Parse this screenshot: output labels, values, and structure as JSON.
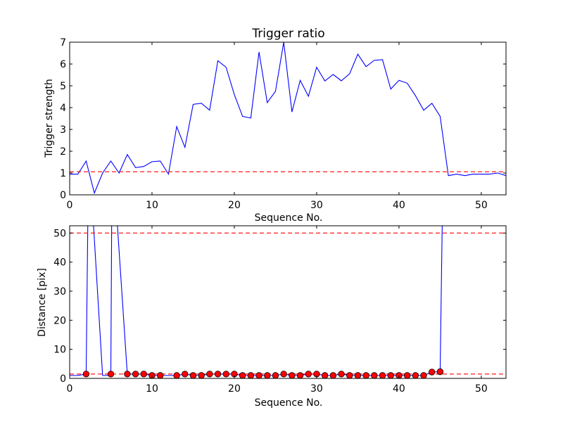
{
  "colors": {
    "line": "#0000ff",
    "threshold": "#ff0000",
    "marker_fill": "#ff0000",
    "marker_edge": "#000000",
    "axes": "#000000"
  },
  "chart_data": [
    {
      "type": "line",
      "title": "Trigger ratio",
      "xlabel": "Sequence No.",
      "ylabel": "Trigger strength",
      "xlim": [
        0,
        53
      ],
      "ylim": [
        0,
        7
      ],
      "xticks": [
        0,
        10,
        20,
        30,
        40,
        50
      ],
      "yticks": [
        0,
        1,
        2,
        3,
        4,
        5,
        6,
        7
      ],
      "grid": false,
      "series": [
        {
          "x": [
            0,
            1,
            2,
            3,
            4,
            5,
            6,
            7,
            8,
            9,
            10,
            11,
            12,
            13,
            14,
            15,
            16,
            17,
            18,
            19,
            20,
            21,
            22,
            23,
            24,
            25,
            26,
            27,
            28,
            29,
            30,
            31,
            32,
            33,
            34,
            35,
            36,
            37,
            38,
            39,
            40,
            41,
            42,
            43,
            44,
            45,
            46,
            47,
            48,
            49,
            50,
            51,
            52,
            53
          ],
          "values": [
            0.95,
            0.95,
            1.55,
            0.08,
            1.0,
            1.55,
            1.0,
            1.85,
            1.25,
            1.3,
            1.52,
            1.55,
            0.95,
            3.13,
            2.18,
            4.15,
            4.2,
            3.88,
            6.15,
            5.85,
            4.6,
            3.6,
            3.52,
            6.55,
            4.23,
            4.75,
            7.0,
            3.8,
            5.25,
            4.52,
            5.85,
            5.22,
            5.52,
            5.23,
            5.55,
            6.45,
            5.88,
            6.17,
            6.2,
            4.85,
            5.25,
            5.12,
            4.55,
            3.88,
            4.2,
            3.6,
            0.88,
            0.95,
            0.88,
            0.95,
            0.95,
            0.95,
            1.0,
            0.88
          ]
        }
      ],
      "hlines": [
        1.06
      ]
    },
    {
      "type": "line",
      "title": "",
      "xlabel": "Sequence No.",
      "ylabel": "Distance [pix]",
      "xlim": [
        0,
        53
      ],
      "ylim": [
        0,
        52.5
      ],
      "xticks": [
        0,
        10,
        20,
        30,
        40,
        50
      ],
      "yticks": [
        0,
        10,
        20,
        30,
        40,
        50
      ],
      "grid": false,
      "series": [
        {
          "x": [
            0,
            1,
            2,
            2.2,
            2.9,
            4,
            4.8,
            5,
            5.1,
            5.8,
            7,
            8,
            9,
            10,
            11,
            12,
            13,
            14,
            15,
            16,
            17,
            18,
            19,
            20,
            21,
            22,
            23,
            24,
            25,
            26,
            27,
            28,
            29,
            30,
            31,
            32,
            33,
            34,
            35,
            36,
            37,
            38,
            39,
            40,
            41,
            42,
            43,
            44,
            45,
            45.25
          ],
          "values": [
            1.0,
            1.0,
            1.5,
            52.5,
            52.5,
            1.0,
            1.0,
            1.5,
            52.5,
            52.5,
            1.5,
            1.5,
            1.5,
            1.0,
            1.0,
            1.0,
            1.0,
            1.5,
            1.0,
            1.0,
            1.5,
            1.5,
            1.5,
            1.5,
            1.0,
            1.0,
            1.0,
            1.0,
            1.0,
            1.5,
            1.0,
            1.0,
            1.5,
            1.5,
            1.0,
            1.0,
            1.5,
            1.0,
            1.0,
            1.0,
            1.0,
            1.0,
            1.0,
            1.0,
            1.0,
            1.0,
            1.0,
            2.2,
            2.3,
            52.5
          ]
        }
      ],
      "markers": {
        "x": [
          2,
          5,
          7,
          8,
          9,
          10,
          11,
          13,
          14,
          15,
          16,
          17,
          18,
          19,
          20,
          21,
          22,
          23,
          24,
          25,
          26,
          27,
          28,
          29,
          30,
          31,
          32,
          33,
          34,
          35,
          36,
          37,
          38,
          39,
          40,
          41,
          42,
          43,
          44,
          45
        ],
        "values": [
          1.5,
          1.5,
          1.5,
          1.5,
          1.5,
          1.0,
          1.0,
          1.0,
          1.5,
          1.0,
          1.0,
          1.5,
          1.5,
          1.5,
          1.5,
          1.0,
          1.0,
          1.0,
          1.0,
          1.0,
          1.5,
          1.0,
          1.0,
          1.5,
          1.5,
          1.0,
          1.0,
          1.5,
          1.0,
          1.0,
          1.0,
          1.0,
          1.0,
          1.0,
          1.0,
          1.0,
          1.0,
          1.0,
          2.2,
          2.3
        ]
      },
      "hlines": [
        50,
        1.5
      ]
    }
  ]
}
